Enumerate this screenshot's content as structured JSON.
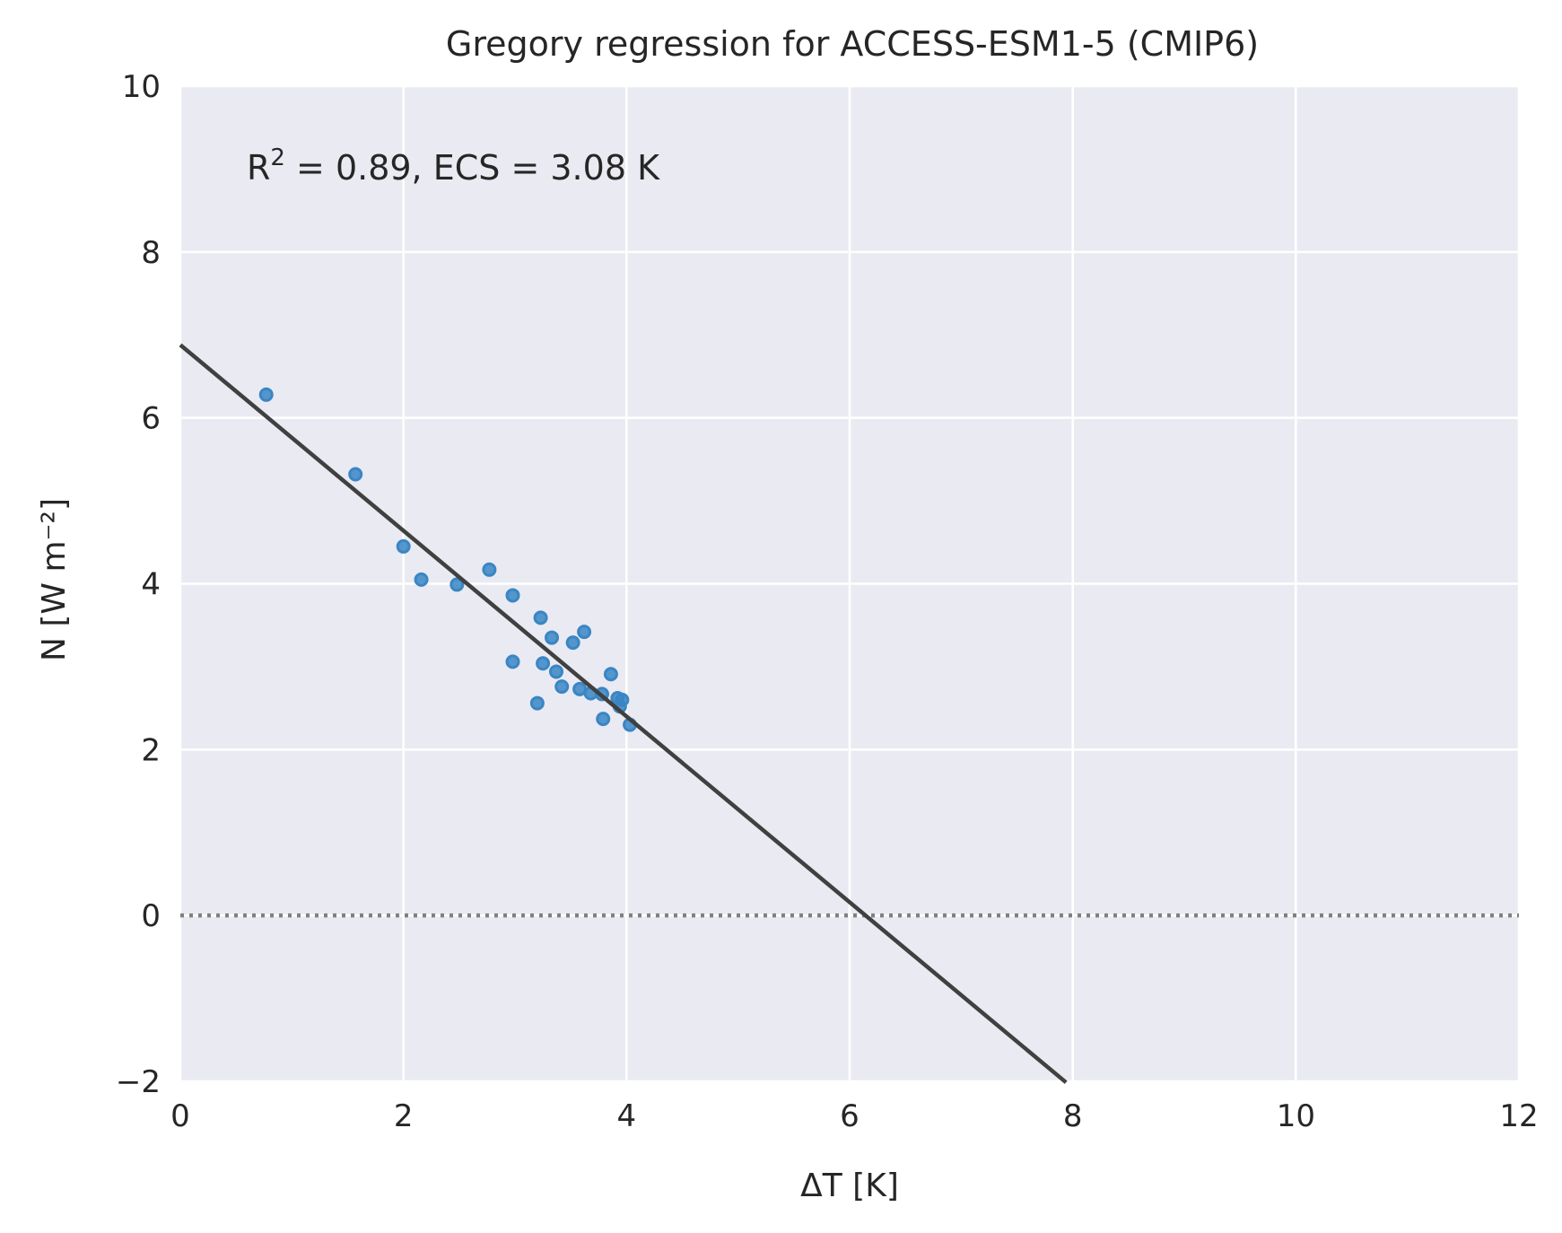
{
  "chart_data": {
    "type": "scatter",
    "title": "Gregory regression for ACCESS-ESM1-5 (CMIP6)",
    "xlabel": "ΔT [K]",
    "ylabel": "N [W m⁻²]",
    "xlim": [
      0,
      12
    ],
    "ylim": [
      -2,
      10
    ],
    "xticks": [
      0,
      2,
      4,
      6,
      8,
      10,
      12
    ],
    "yticks": [
      -2,
      0,
      2,
      4,
      6,
      8,
      10
    ],
    "xtick_labels": [
      "0",
      "2",
      "4",
      "6",
      "8",
      "10",
      "12"
    ],
    "ytick_labels": [
      "−2",
      "0",
      "2",
      "4",
      "6",
      "8",
      "10"
    ],
    "grid": true,
    "background": "#eaeaf2",
    "series": [
      {
        "color": "#3a86c4",
        "points": [
          {
            "x": 0.77,
            "y": 6.28
          },
          {
            "x": 1.57,
            "y": 5.32
          },
          {
            "x": 2.0,
            "y": 4.45
          },
          {
            "x": 2.16,
            "y": 4.05
          },
          {
            "x": 2.48,
            "y": 3.99
          },
          {
            "x": 2.77,
            "y": 4.17
          },
          {
            "x": 2.98,
            "y": 3.86
          },
          {
            "x": 2.98,
            "y": 3.06
          },
          {
            "x": 3.2,
            "y": 2.56
          },
          {
            "x": 3.23,
            "y": 3.59
          },
          {
            "x": 3.25,
            "y": 3.04
          },
          {
            "x": 3.33,
            "y": 3.35
          },
          {
            "x": 3.37,
            "y": 2.94
          },
          {
            "x": 3.42,
            "y": 2.76
          },
          {
            "x": 3.52,
            "y": 3.29
          },
          {
            "x": 3.58,
            "y": 2.73
          },
          {
            "x": 3.62,
            "y": 3.42
          },
          {
            "x": 3.68,
            "y": 2.68
          },
          {
            "x": 3.78,
            "y": 2.67
          },
          {
            "x": 3.79,
            "y": 2.37
          },
          {
            "x": 3.86,
            "y": 2.91
          },
          {
            "x": 3.92,
            "y": 2.62
          },
          {
            "x": 3.96,
            "y": 2.6
          },
          {
            "x": 3.94,
            "y": 2.52
          },
          {
            "x": 4.03,
            "y": 2.3
          }
        ]
      }
    ],
    "regression_line": {
      "intercept": 6.88,
      "slope": -1.12,
      "x_range": [
        0,
        7.94
      ],
      "color": "#404040"
    },
    "reference_line": {
      "y": 0,
      "style": "dotted",
      "color": "#808080"
    },
    "annotation": {
      "r_label": "R",
      "r_sup": "2",
      "rest": " = 0.89, ECS = 3.08 K"
    }
  }
}
